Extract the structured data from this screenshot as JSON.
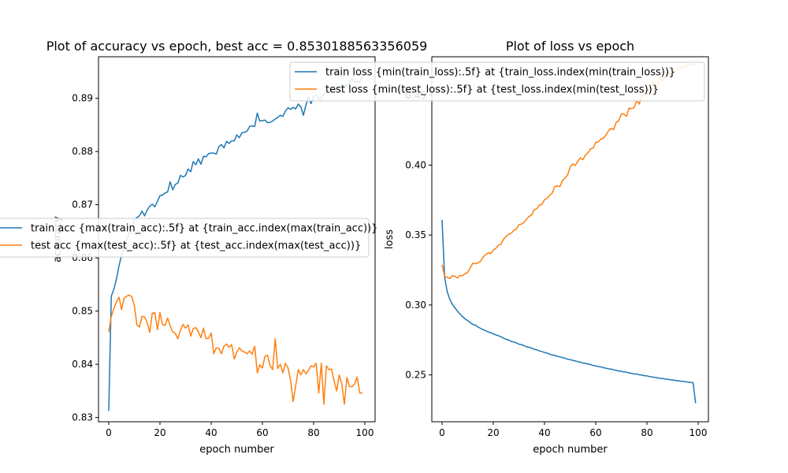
{
  "colors": {
    "train": "#1f77b4",
    "test": "#ff7f0e"
  },
  "chart_data": [
    {
      "type": "line",
      "title": "Plot of accuracy vs epoch, best acc = 0.8530188563356059",
      "xlabel": "epoch number",
      "ylabel": "accuracy",
      "xlim": [
        -4,
        104
      ],
      "ylim": [
        0.8292,
        0.8978
      ],
      "xticks": [
        0,
        20,
        40,
        60,
        80,
        100
      ],
      "xtick_labels": [
        "0",
        "20",
        "40",
        "60",
        "80",
        "100"
      ],
      "yticks": [
        0.83,
        0.84,
        0.85,
        0.86,
        0.87,
        0.88,
        0.89
      ],
      "ytick_labels": [
        "0.83",
        "0.84",
        "0.85",
        "0.86",
        "0.87",
        "0.88",
        "0.89"
      ],
      "legend_position": "center-left",
      "series": [
        {
          "name": "train acc {max(train_acc):.5f} at {train_acc.index(max(train_acc))}",
          "color_key": "train",
          "values": [
            0.8313,
            0.8528,
            0.8541,
            0.856,
            0.8585,
            0.8605,
            0.8622,
            0.8636,
            0.8646,
            0.8651,
            0.8672,
            0.8676,
            0.8679,
            0.8688,
            0.8679,
            0.869,
            0.8697,
            0.8701,
            0.8696,
            0.8706,
            0.8717,
            0.8718,
            0.8722,
            0.8724,
            0.8743,
            0.8728,
            0.8738,
            0.8741,
            0.8755,
            0.8752,
            0.8755,
            0.8767,
            0.8762,
            0.8781,
            0.8775,
            0.8786,
            0.8776,
            0.8791,
            0.879,
            0.8796,
            0.8797,
            0.8797,
            0.8795,
            0.8809,
            0.8813,
            0.8807,
            0.8819,
            0.8815,
            0.882,
            0.882,
            0.8831,
            0.8826,
            0.8835,
            0.8836,
            0.8838,
            0.8847,
            0.8848,
            0.8847,
            0.8872,
            0.8857,
            0.8858,
            0.8859,
            0.8854,
            0.8855,
            0.8857,
            0.8861,
            0.8864,
            0.8868,
            0.8866,
            0.8876,
            0.8882,
            0.8879,
            0.8883,
            0.888,
            0.8889,
            0.8884,
            0.8868,
            0.8887,
            0.8903,
            0.889,
            0.8903,
            0.8906,
            0.8899,
            0.89,
            0.8908,
            0.8913,
            0.891,
            0.8915,
            0.8917,
            0.8915,
            0.8918,
            0.8923,
            0.8925,
            0.8923,
            0.8929,
            0.8937,
            0.893,
            0.8932,
            0.893,
            0.8941
          ]
        },
        {
          "name": "test acc {max(test_acc):.5f} at {test_acc.index(max(test_acc))}",
          "color_key": "test",
          "values": [
            0.8461,
            0.849,
            0.8505,
            0.8517,
            0.8526,
            0.8503,
            0.8524,
            0.8528,
            0.853,
            0.8527,
            0.851,
            0.8474,
            0.847,
            0.849,
            0.8489,
            0.8479,
            0.846,
            0.8496,
            0.8497,
            0.8465,
            0.8497,
            0.8475,
            0.8473,
            0.8487,
            0.8472,
            0.8461,
            0.8458,
            0.8448,
            0.8464,
            0.8475,
            0.8468,
            0.8474,
            0.8453,
            0.8467,
            0.8469,
            0.8461,
            0.845,
            0.8468,
            0.8448,
            0.8449,
            0.8459,
            0.842,
            0.8431,
            0.843,
            0.842,
            0.8434,
            0.8438,
            0.8432,
            0.8437,
            0.841,
            0.8423,
            0.8431,
            0.8425,
            0.8423,
            0.842,
            0.8425,
            0.8419,
            0.8434,
            0.8384,
            0.8399,
            0.8393,
            0.8415,
            0.8417,
            0.8398,
            0.839,
            0.8448,
            0.8392,
            0.84,
            0.8384,
            0.8402,
            0.8393,
            0.837,
            0.833,
            0.836,
            0.839,
            0.838,
            0.839,
            0.8382,
            0.8389,
            0.8397,
            0.8395,
            0.8402,
            0.8346,
            0.8402,
            0.8325,
            0.8397,
            0.839,
            0.8391,
            0.8368,
            0.835,
            0.838,
            0.8363,
            0.8325,
            0.8375,
            0.8358,
            0.8358,
            0.8363,
            0.8376,
            0.8346,
            0.8346
          ]
        }
      ]
    },
    {
      "type": "line",
      "title": "Plot of loss vs epoch",
      "xlabel": "epoch number",
      "ylabel": "loss",
      "xlim": [
        -4,
        104
      ],
      "ylim": [
        0.2165,
        0.4775
      ],
      "xticks": [
        0,
        20,
        40,
        60,
        80,
        100
      ],
      "xtick_labels": [
        "0",
        "20",
        "40",
        "60",
        "80",
        "100"
      ],
      "yticks": [
        0.25,
        0.3,
        0.35,
        0.4,
        0.45
      ],
      "ytick_labels": [
        "0.25",
        "0.30",
        "0.35",
        "0.40",
        "0.45"
      ],
      "legend_position": "upper-right",
      "series": [
        {
          "name": "train loss {min(train_loss):.5f} at {train_loss.index(min(train_loss))}",
          "color_key": "train",
          "values": [
            0.3607,
            0.3198,
            0.3095,
            0.3041,
            0.3005,
            0.298,
            0.2956,
            0.2936,
            0.2917,
            0.29,
            0.2889,
            0.2874,
            0.2861,
            0.2856,
            0.2843,
            0.2833,
            0.2823,
            0.2817,
            0.2807,
            0.2802,
            0.2794,
            0.2786,
            0.278,
            0.2773,
            0.2763,
            0.2755,
            0.275,
            0.2739,
            0.2736,
            0.2729,
            0.272,
            0.2716,
            0.2709,
            0.2701,
            0.2698,
            0.2691,
            0.2683,
            0.2679,
            0.2672,
            0.2667,
            0.266,
            0.2656,
            0.2649,
            0.2643,
            0.264,
            0.2633,
            0.2629,
            0.2624,
            0.262,
            0.2612,
            0.261,
            0.2604,
            0.26,
            0.2595,
            0.2591,
            0.2585,
            0.2583,
            0.2577,
            0.2574,
            0.2567,
            0.2565,
            0.256,
            0.2557,
            0.2552,
            0.2548,
            0.2543,
            0.2542,
            0.2536,
            0.2533,
            0.2528,
            0.2526,
            0.2521,
            0.252,
            0.2514,
            0.2511,
            0.2507,
            0.2506,
            0.2501,
            0.2499,
            0.2494,
            0.2493,
            0.2488,
            0.2486,
            0.2482,
            0.248,
            0.2476,
            0.2475,
            0.2471,
            0.2469,
            0.2465,
            0.2464,
            0.2461,
            0.2459,
            0.2456,
            0.2454,
            0.2451,
            0.2449,
            0.2446,
            0.2444,
            0.23
          ]
        },
        {
          "name": "test loss {min(test_loss):.5f} at {test_loss.index(min(test_loss))}",
          "color_key": "test",
          "values": [
            0.3286,
            0.3206,
            0.3197,
            0.3189,
            0.321,
            0.3205,
            0.3193,
            0.321,
            0.321,
            0.3223,
            0.3234,
            0.3266,
            0.3298,
            0.3295,
            0.3301,
            0.3313,
            0.3342,
            0.3361,
            0.3372,
            0.3367,
            0.3392,
            0.3405,
            0.3427,
            0.3435,
            0.347,
            0.3491,
            0.3506,
            0.3512,
            0.3534,
            0.3542,
            0.3574,
            0.3578,
            0.3591,
            0.3614,
            0.3634,
            0.3644,
            0.3681,
            0.3689,
            0.3715,
            0.3719,
            0.3754,
            0.3763,
            0.3784,
            0.38,
            0.3847,
            0.3852,
            0.3846,
            0.3888,
            0.3909,
            0.3929,
            0.3985,
            0.4009,
            0.3998,
            0.4029,
            0.4052,
            0.4039,
            0.4072,
            0.4088,
            0.4117,
            0.4122,
            0.4162,
            0.4166,
            0.4186,
            0.4193,
            0.4214,
            0.4246,
            0.4263,
            0.4254,
            0.4306,
            0.4318,
            0.4366,
            0.4365,
            0.4349,
            0.4408,
            0.4404,
            0.4412,
            0.4462,
            0.4437,
            0.4499,
            0.4517,
            0.4501,
            0.4545,
            0.4592,
            0.4546,
            0.4564,
            0.463,
            0.4601,
            0.4625,
            0.4672,
            0.4638,
            0.4649,
            0.4663,
            0.4689,
            0.4694,
            0.4706,
            0.4708,
            0.4716,
            0.4713,
            0.4725,
            0.472
          ]
        }
      ]
    }
  ]
}
